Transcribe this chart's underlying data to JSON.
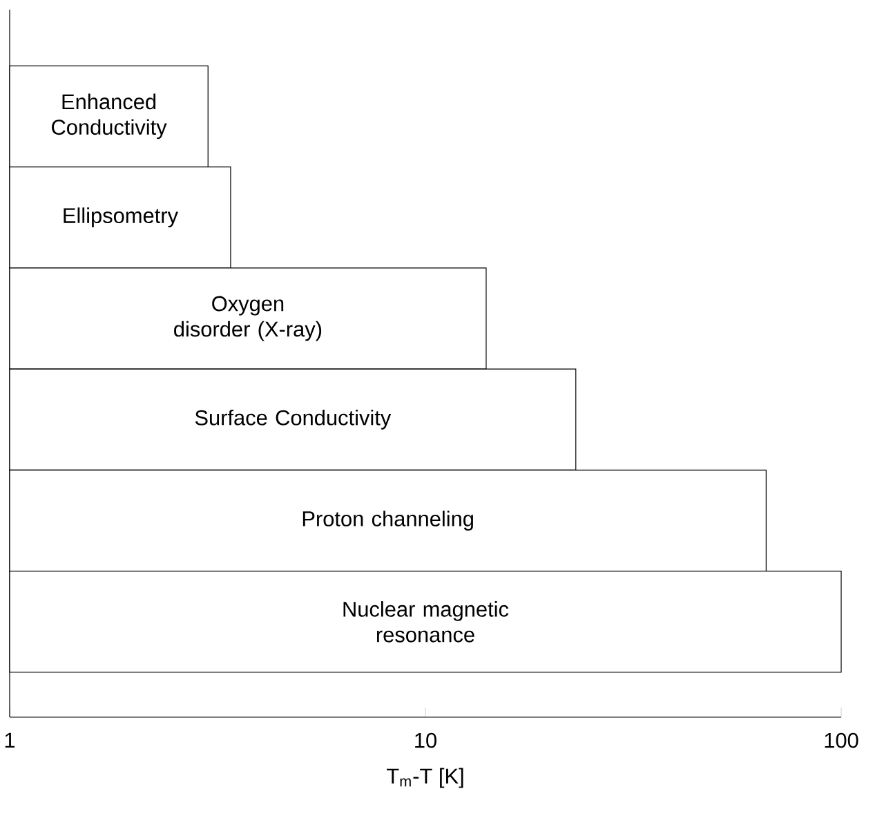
{
  "chart_data": {
    "type": "bar",
    "orientation": "horizontal",
    "log": "x",
    "categories": [
      "Enhanced Conductivity",
      "Ellipsometry",
      "Oxygen disorder (X-ray)",
      "Surface Conductivity",
      "Proton channeling",
      "Nuclear magnetic resonance"
    ],
    "values": [
      3.0,
      3.4,
      14,
      23,
      66,
      100
    ],
    "color": "#ffffff",
    "xlim": [
      1,
      100
    ],
    "xticks": [
      1,
      10,
      100
    ],
    "xlabel": "T$_{m}$-T [K]"
  }
}
